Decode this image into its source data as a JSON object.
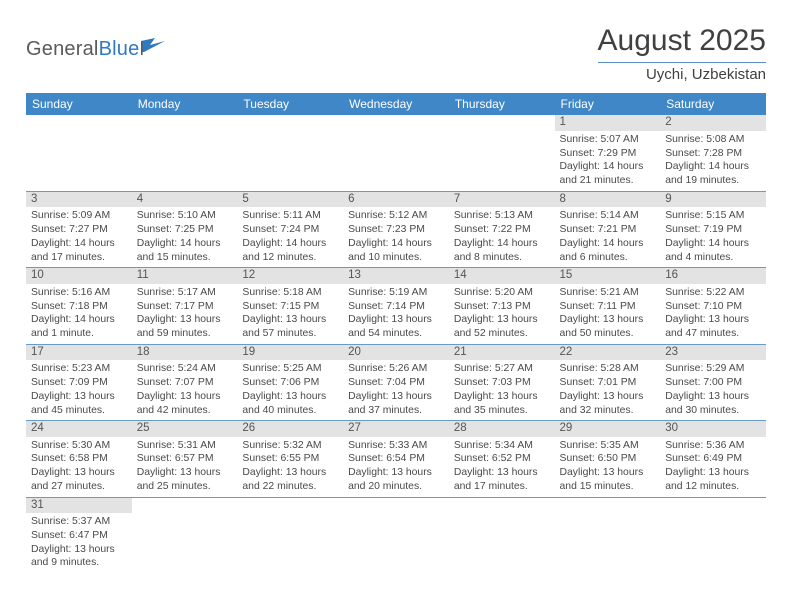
{
  "logo": {
    "text1": "General",
    "text2": "Blue"
  },
  "title": "August 2025",
  "location": "Uychi, Uzbekistan",
  "colors": {
    "header_bg": "#3f87c7",
    "header_text": "#ffffff",
    "daynum_bg": "#e3e3e3",
    "rule": "#6a9bc8",
    "page_bg": "#ffffff"
  },
  "weekdays": [
    "Sunday",
    "Monday",
    "Tuesday",
    "Wednesday",
    "Thursday",
    "Friday",
    "Saturday"
  ],
  "weeks": [
    [
      null,
      null,
      null,
      null,
      null,
      {
        "n": "1",
        "sr": "Sunrise: 5:07 AM",
        "ss": "Sunset: 7:29 PM",
        "dl1": "Daylight: 14 hours",
        "dl2": "and 21 minutes."
      },
      {
        "n": "2",
        "sr": "Sunrise: 5:08 AM",
        "ss": "Sunset: 7:28 PM",
        "dl1": "Daylight: 14 hours",
        "dl2": "and 19 minutes."
      }
    ],
    [
      {
        "n": "3",
        "sr": "Sunrise: 5:09 AM",
        "ss": "Sunset: 7:27 PM",
        "dl1": "Daylight: 14 hours",
        "dl2": "and 17 minutes."
      },
      {
        "n": "4",
        "sr": "Sunrise: 5:10 AM",
        "ss": "Sunset: 7:25 PM",
        "dl1": "Daylight: 14 hours",
        "dl2": "and 15 minutes."
      },
      {
        "n": "5",
        "sr": "Sunrise: 5:11 AM",
        "ss": "Sunset: 7:24 PM",
        "dl1": "Daylight: 14 hours",
        "dl2": "and 12 minutes."
      },
      {
        "n": "6",
        "sr": "Sunrise: 5:12 AM",
        "ss": "Sunset: 7:23 PM",
        "dl1": "Daylight: 14 hours",
        "dl2": "and 10 minutes."
      },
      {
        "n": "7",
        "sr": "Sunrise: 5:13 AM",
        "ss": "Sunset: 7:22 PM",
        "dl1": "Daylight: 14 hours",
        "dl2": "and 8 minutes."
      },
      {
        "n": "8",
        "sr": "Sunrise: 5:14 AM",
        "ss": "Sunset: 7:21 PM",
        "dl1": "Daylight: 14 hours",
        "dl2": "and 6 minutes."
      },
      {
        "n": "9",
        "sr": "Sunrise: 5:15 AM",
        "ss": "Sunset: 7:19 PM",
        "dl1": "Daylight: 14 hours",
        "dl2": "and 4 minutes."
      }
    ],
    [
      {
        "n": "10",
        "sr": "Sunrise: 5:16 AM",
        "ss": "Sunset: 7:18 PM",
        "dl1": "Daylight: 14 hours",
        "dl2": "and 1 minute."
      },
      {
        "n": "11",
        "sr": "Sunrise: 5:17 AM",
        "ss": "Sunset: 7:17 PM",
        "dl1": "Daylight: 13 hours",
        "dl2": "and 59 minutes."
      },
      {
        "n": "12",
        "sr": "Sunrise: 5:18 AM",
        "ss": "Sunset: 7:15 PM",
        "dl1": "Daylight: 13 hours",
        "dl2": "and 57 minutes."
      },
      {
        "n": "13",
        "sr": "Sunrise: 5:19 AM",
        "ss": "Sunset: 7:14 PM",
        "dl1": "Daylight: 13 hours",
        "dl2": "and 54 minutes."
      },
      {
        "n": "14",
        "sr": "Sunrise: 5:20 AM",
        "ss": "Sunset: 7:13 PM",
        "dl1": "Daylight: 13 hours",
        "dl2": "and 52 minutes."
      },
      {
        "n": "15",
        "sr": "Sunrise: 5:21 AM",
        "ss": "Sunset: 7:11 PM",
        "dl1": "Daylight: 13 hours",
        "dl2": "and 50 minutes."
      },
      {
        "n": "16",
        "sr": "Sunrise: 5:22 AM",
        "ss": "Sunset: 7:10 PM",
        "dl1": "Daylight: 13 hours",
        "dl2": "and 47 minutes."
      }
    ],
    [
      {
        "n": "17",
        "sr": "Sunrise: 5:23 AM",
        "ss": "Sunset: 7:09 PM",
        "dl1": "Daylight: 13 hours",
        "dl2": "and 45 minutes."
      },
      {
        "n": "18",
        "sr": "Sunrise: 5:24 AM",
        "ss": "Sunset: 7:07 PM",
        "dl1": "Daylight: 13 hours",
        "dl2": "and 42 minutes."
      },
      {
        "n": "19",
        "sr": "Sunrise: 5:25 AM",
        "ss": "Sunset: 7:06 PM",
        "dl1": "Daylight: 13 hours",
        "dl2": "and 40 minutes."
      },
      {
        "n": "20",
        "sr": "Sunrise: 5:26 AM",
        "ss": "Sunset: 7:04 PM",
        "dl1": "Daylight: 13 hours",
        "dl2": "and 37 minutes."
      },
      {
        "n": "21",
        "sr": "Sunrise: 5:27 AM",
        "ss": "Sunset: 7:03 PM",
        "dl1": "Daylight: 13 hours",
        "dl2": "and 35 minutes."
      },
      {
        "n": "22",
        "sr": "Sunrise: 5:28 AM",
        "ss": "Sunset: 7:01 PM",
        "dl1": "Daylight: 13 hours",
        "dl2": "and 32 minutes."
      },
      {
        "n": "23",
        "sr": "Sunrise: 5:29 AM",
        "ss": "Sunset: 7:00 PM",
        "dl1": "Daylight: 13 hours",
        "dl2": "and 30 minutes."
      }
    ],
    [
      {
        "n": "24",
        "sr": "Sunrise: 5:30 AM",
        "ss": "Sunset: 6:58 PM",
        "dl1": "Daylight: 13 hours",
        "dl2": "and 27 minutes."
      },
      {
        "n": "25",
        "sr": "Sunrise: 5:31 AM",
        "ss": "Sunset: 6:57 PM",
        "dl1": "Daylight: 13 hours",
        "dl2": "and 25 minutes."
      },
      {
        "n": "26",
        "sr": "Sunrise: 5:32 AM",
        "ss": "Sunset: 6:55 PM",
        "dl1": "Daylight: 13 hours",
        "dl2": "and 22 minutes."
      },
      {
        "n": "27",
        "sr": "Sunrise: 5:33 AM",
        "ss": "Sunset: 6:54 PM",
        "dl1": "Daylight: 13 hours",
        "dl2": "and 20 minutes."
      },
      {
        "n": "28",
        "sr": "Sunrise: 5:34 AM",
        "ss": "Sunset: 6:52 PM",
        "dl1": "Daylight: 13 hours",
        "dl2": "and 17 minutes."
      },
      {
        "n": "29",
        "sr": "Sunrise: 5:35 AM",
        "ss": "Sunset: 6:50 PM",
        "dl1": "Daylight: 13 hours",
        "dl2": "and 15 minutes."
      },
      {
        "n": "30",
        "sr": "Sunrise: 5:36 AM",
        "ss": "Sunset: 6:49 PM",
        "dl1": "Daylight: 13 hours",
        "dl2": "and 12 minutes."
      }
    ],
    [
      {
        "n": "31",
        "sr": "Sunrise: 5:37 AM",
        "ss": "Sunset: 6:47 PM",
        "dl1": "Daylight: 13 hours",
        "dl2": "and 9 minutes."
      },
      null,
      null,
      null,
      null,
      null,
      null
    ]
  ]
}
